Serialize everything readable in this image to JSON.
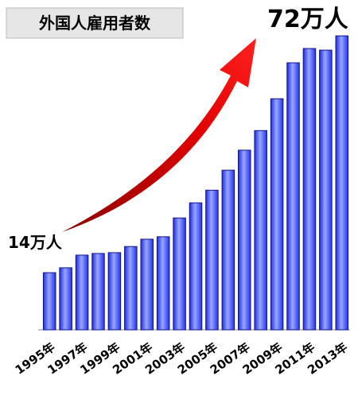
{
  "chart_data": {
    "type": "bar",
    "title": "外国人雇用者数",
    "categories": [
      "1995年",
      null,
      "1997年",
      null,
      "1999年",
      null,
      "2001年",
      null,
      "2003年",
      null,
      "2005年",
      null,
      "2007年",
      null,
      "2009年",
      null,
      "2011年",
      null,
      "2013年"
    ],
    "values": [
      14,
      15.2,
      18.3,
      18.7,
      18.9,
      20.4,
      22.2,
      22.8,
      27.4,
      31.1,
      34.2,
      39.1,
      44,
      48.8,
      56.6,
      65.4,
      68.9,
      68.5,
      72
    ],
    "color": "#3b4cff",
    "ylim": [
      0,
      80
    ],
    "annotations": [
      "14万人",
      "72万人"
    ]
  }
}
